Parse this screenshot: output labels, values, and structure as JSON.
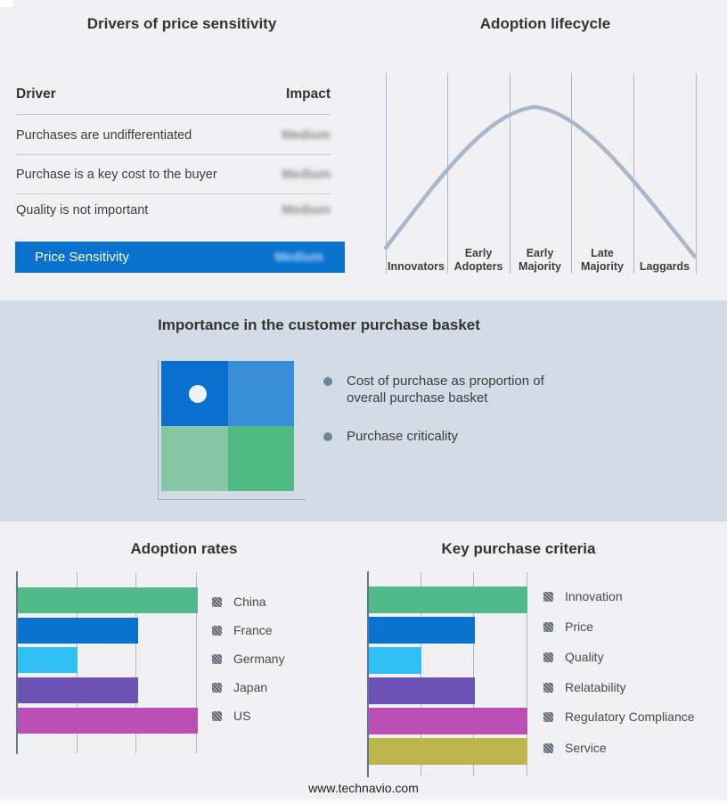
{
  "footer": {
    "text": "www.technavio.com"
  },
  "colors": {
    "background": "#f1f1f3",
    "band": "#d3dce6",
    "title_text": "#333333",
    "body_text": "#3d3d3d",
    "legend_text": "#4a4a4a",
    "footer_text": "#222222",
    "blur_text": "#8c8c8c",
    "blur_text_on_blue": "#bcd9f5",
    "highlight_blue": "#0971ce",
    "table_line": "#c2c7d0",
    "curve": "#a9b7cc",
    "gridline": "#aeb8ca",
    "axis": "#5d7795",
    "bullet": "#6f84a1",
    "hatch_dark": "#57616f",
    "hatch_light": "#a7aeb8",
    "quadrant": {
      "tl": "#0b6fd0",
      "tr": "#3a8ed8",
      "bl": "#85c7a2",
      "br": "#4fba84",
      "marker": "#eaf3fb"
    },
    "bar_palette": [
      "#52ba8a",
      "#0971ce",
      "#30c0f5",
      "#6c52b4",
      "#bc4fb6",
      "#bdb54e"
    ]
  },
  "chart_data": [
    {
      "type": "table",
      "title": "Drivers of price sensitivity",
      "columns": [
        "Driver",
        "Impact"
      ],
      "rows": [
        [
          "Purchases are undifferentiated",
          "Medium"
        ],
        [
          "Purchase is a key cost to the buyer",
          "Medium"
        ],
        [
          "Quality is not important",
          "Medium"
        ]
      ],
      "summary_row": [
        "Price Sensitivity",
        "Medium"
      ],
      "notes": "Impact values are shown blurred; summary row highlighted on blue bar"
    },
    {
      "type": "line",
      "title": "Adoption lifecycle",
      "categories": [
        "Innovators",
        "Early Adopters",
        "Early Majority",
        "Late Majority",
        "Laggards"
      ],
      "shape": "bell curve rising from Innovators, peaking over Early Majority, falling to Laggards",
      "grid": "vertical separators between the five stages, no numeric axes"
    },
    {
      "type": "heatmap",
      "title": "Importance in the customer purchase basket",
      "matrix": "2x2 quadrant (blue top row, green bottom row)",
      "marker_quadrant": "top-left",
      "bullets": [
        "Cost of purchase as proportion of overall purchase basket",
        "Purchase criticality"
      ]
    },
    {
      "type": "bar",
      "title": "Adoption rates",
      "orientation": "horizontal",
      "categories": [
        "China",
        "France",
        "Germany",
        "Japan",
        "US"
      ],
      "values": [
        3,
        2,
        1,
        2,
        3
      ],
      "xlim": [
        0,
        3
      ],
      "xlabel": "",
      "ylabel": "",
      "grid": true,
      "legend_position": "right",
      "notes": "no numeric axis labels shown; values read in gridline units"
    },
    {
      "type": "bar",
      "title": "Key purchase criteria",
      "orientation": "horizontal",
      "categories": [
        "Innovation",
        "Price",
        "Quality",
        "Relatability",
        "Regulatory Compliance",
        "Service"
      ],
      "values": [
        3,
        2,
        1,
        2,
        3,
        3
      ],
      "xlim": [
        0,
        3
      ],
      "xlabel": "",
      "ylabel": "",
      "grid": true,
      "legend_position": "right",
      "notes": "no numeric axis labels shown; values read in gridline units"
    }
  ]
}
